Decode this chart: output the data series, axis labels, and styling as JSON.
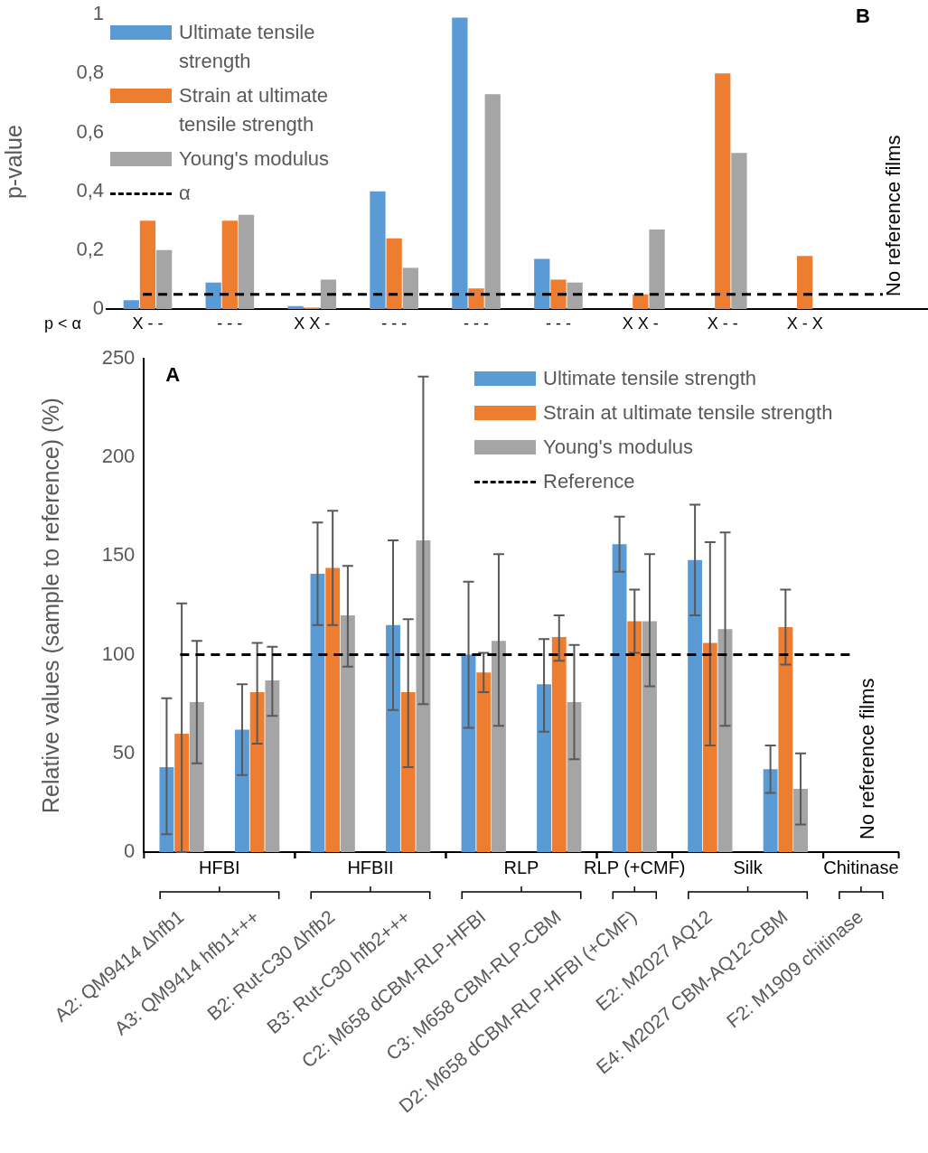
{
  "chart_data": [
    {
      "type": "bar",
      "title": "B",
      "xlabel": "p < α",
      "ylabel": "p-value",
      "categories": [
        "X - -",
        "- - -",
        "X X -",
        "- - -",
        "- - -",
        "- - -",
        "X X -",
        "X - -",
        "X - X",
        null
      ],
      "series": [
        {
          "name": "Ultimate tensile strength",
          "color": "#5b9bd5",
          "values": [
            0.03,
            0.09,
            0.01,
            0.4,
            0.99,
            0.17,
            0,
            0,
            0,
            null
          ]
        },
        {
          "name": "Strain at ultimate tensile strength",
          "color": "#ed7d31",
          "values": [
            0.3,
            0.3,
            0.005,
            0.24,
            0.07,
            0.1,
            0.05,
            0.8,
            0.18,
            null
          ]
        },
        {
          "name": "Young's modulus",
          "color": "#a5a5a5",
          "values": [
            0.2,
            0.32,
            0.1,
            0.14,
            0.73,
            0.09,
            0.27,
            0.53,
            0,
            null
          ]
        }
      ],
      "ylim": [
        0,
        1
      ],
      "yticks": [
        0,
        {
          "value": 0.2,
          "label": "0,2"
        },
        {
          "value": 0.4,
          "label": "0,4"
        },
        {
          "value": 0.6,
          "label": "0,6"
        },
        {
          "value": 0.8,
          "label": "0,8"
        },
        1
      ],
      "ref_lines": [
        {
          "axis": "y",
          "value": 0.05,
          "label": "α",
          "color": "#000000",
          "line_style": "dashed"
        }
      ],
      "annotations": [
        "No reference films"
      ],
      "legend": "top left",
      "grid": false
    },
    {
      "type": "bar",
      "title": "A",
      "ylabel": "Relative values (sample to reference) (%)",
      "categories": [
        "A2: QM9414 Δhfb1",
        "A3: QM9414 hfb1+++",
        "B2: Rut-C30 Δhfb2",
        "B3: Rut-C30 hfb2+++",
        "C2: M658 dCBM-RLP-HFBI",
        "C3: M658 CBM-RLP-CBM",
        "D2: M658 dCBM-RLP-HFBI (+CMF)",
        "E2: M2027 AQ12",
        "E4: M2027 CBM-AQ12-CBM",
        "F2: M1909 chitinase"
      ],
      "series": [
        {
          "name": "Ultimate tensile strength",
          "color": "#5b9bd5",
          "values": [
            43,
            62,
            141,
            115,
            100,
            85,
            156,
            148,
            42,
            null
          ],
          "errors": [
            [
              9,
              78
            ],
            [
              39,
              85
            ],
            [
              115,
              167
            ],
            [
              72,
              158
            ],
            [
              63,
              137
            ],
            [
              61,
              108
            ],
            [
              142,
              170
            ],
            [
              120,
              176
            ],
            [
              30,
              54
            ],
            null
          ]
        },
        {
          "name": "Strain at ultimate tensile strength",
          "color": "#ed7d31",
          "values": [
            60,
            81,
            144,
            81,
            91,
            109,
            117,
            106,
            114,
            null
          ],
          "errors": [
            [
              0,
              126
            ],
            [
              55,
              106
            ],
            [
              115,
              173
            ],
            [
              43,
              118
            ],
            [
              81,
              101
            ],
            [
              97,
              120
            ],
            [
              101,
              133
            ],
            [
              54,
              157
            ],
            [
              95,
              133
            ],
            null
          ]
        },
        {
          "name": "Young's modulus",
          "color": "#a5a5a5",
          "values": [
            76,
            87,
            120,
            158,
            107,
            76,
            117,
            113,
            32,
            null
          ],
          "errors": [
            [
              45,
              107
            ],
            [
              69,
              104
            ],
            [
              94,
              145
            ],
            [
              75,
              241
            ],
            [
              64,
              151
            ],
            [
              47,
              105
            ],
            [
              84,
              151
            ],
            [
              64,
              162
            ],
            [
              14,
              50
            ],
            null
          ]
        }
      ],
      "ylim": [
        0,
        250
      ],
      "yticks": [
        0,
        50,
        100,
        150,
        200,
        250
      ],
      "ref_lines": [
        {
          "axis": "y",
          "value": 100,
          "label": "Reference",
          "color": "#000000",
          "line_style": "dashed"
        }
      ],
      "annotations": [
        "No reference films",
        "HFBI",
        "HFBII",
        "RLP",
        "RLP (+CMF)",
        "Silk",
        "Chitinase"
      ],
      "legend": "top right",
      "grid": false
    }
  ]
}
